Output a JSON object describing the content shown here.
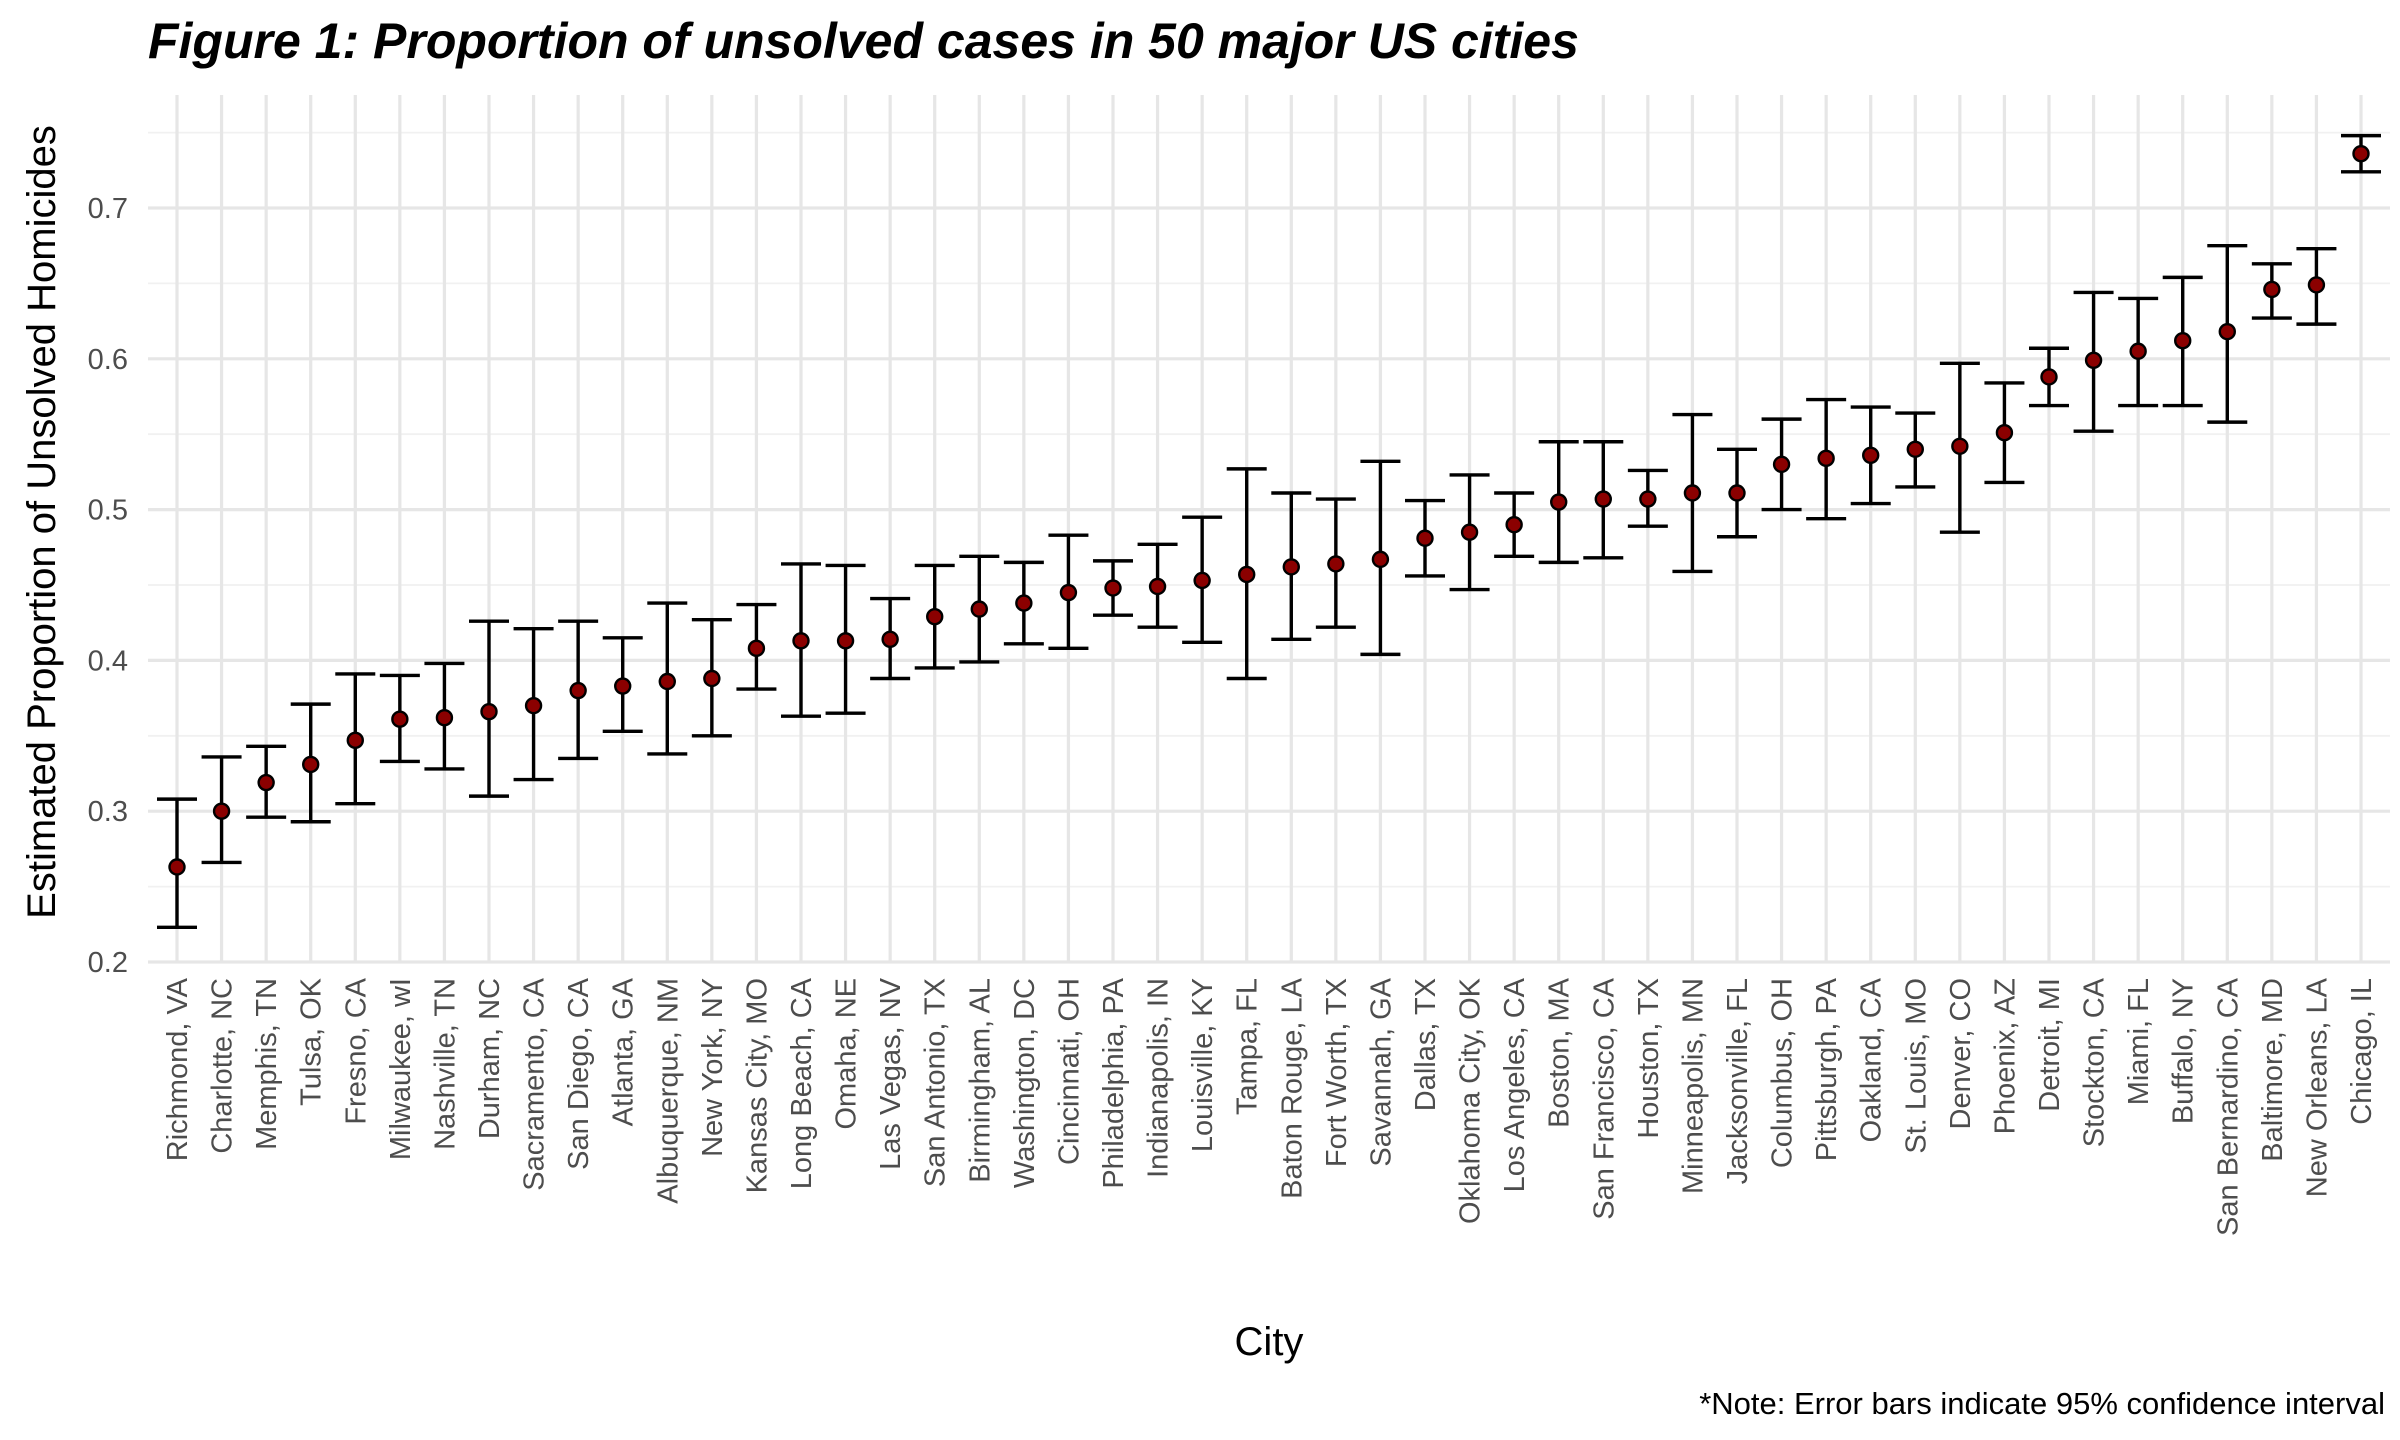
{
  "chart_data": {
    "type": "scatter",
    "title": "Figure 1: Proportion of unsolved cases in 50 major US cities",
    "xlabel": "City",
    "ylabel": "Estimated Proportion of Unsolved Homicides",
    "caption": "*Note: Error bars indicate 95% confidence interval",
    "ylim": [
      0.2,
      0.75
    ],
    "y_ticks": [
      0.2,
      0.3,
      0.4,
      0.5,
      0.6,
      0.7
    ],
    "grid": true,
    "legend": "none",
    "colors": {
      "point_fill": "#8b0000",
      "error_bar": "#000000",
      "grid": "#e6e6e6"
    },
    "categories": [
      "Richmond, VA",
      "Charlotte, NC",
      "Memphis, TN",
      "Tulsa, OK",
      "Fresno, CA",
      "Milwaukee, wI",
      "Nashville, TN",
      "Durham, NC",
      "Sacramento, CA",
      "San Diego, CA",
      "Atlanta, GA",
      "Albuquerque, NM",
      "New York, NY",
      "Kansas City, MO",
      "Long Beach, CA",
      "Omaha, NE",
      "Las Vegas, NV",
      "San Antonio, TX",
      "Birmingham, AL",
      "Washington, DC",
      "Cincinnati, OH",
      "Philadelphia, PA",
      "Indianapolis, IN",
      "Louisville, KY",
      "Tampa, FL",
      "Baton Rouge, LA",
      "Fort Worth, TX",
      "Savannah, GA",
      "Dallas, TX",
      "Oklahoma City, OK",
      "Los Angeles, CA",
      "Boston, MA",
      "San Francisco, CA",
      "Houston, TX",
      "Minneapolis, MN",
      "Jacksonville, FL",
      "Columbus, OH",
      "Pittsburgh, PA",
      "Oakland, CA",
      "St. Louis, MO",
      "Denver, CO",
      "Phoenix, AZ",
      "Detroit, MI",
      "Stockton, CA",
      "Miami, FL",
      "Buffalo, NY",
      "San Bernardino, CA",
      "Baltimore, MD",
      "New Orleans, LA",
      "Chicago, IL"
    ],
    "estimate": [
      0.263,
      0.3,
      0.319,
      0.331,
      0.347,
      0.361,
      0.362,
      0.366,
      0.37,
      0.38,
      0.383,
      0.386,
      0.388,
      0.408,
      0.413,
      0.413,
      0.414,
      0.429,
      0.434,
      0.438,
      0.445,
      0.448,
      0.449,
      0.453,
      0.457,
      0.462,
      0.464,
      0.467,
      0.481,
      0.485,
      0.49,
      0.505,
      0.507,
      0.507,
      0.511,
      0.511,
      0.53,
      0.534,
      0.536,
      0.54,
      0.542,
      0.551,
      0.588,
      0.599,
      0.605,
      0.612,
      0.618,
      0.646,
      0.649,
      0.736
    ],
    "ci_low": [
      0.223,
      0.266,
      0.296,
      0.293,
      0.305,
      0.333,
      0.328,
      0.31,
      0.321,
      0.335,
      0.353,
      0.338,
      0.35,
      0.381,
      0.363,
      0.365,
      0.388,
      0.395,
      0.399,
      0.411,
      0.408,
      0.43,
      0.422,
      0.412,
      0.388,
      0.414,
      0.422,
      0.404,
      0.456,
      0.447,
      0.469,
      0.465,
      0.468,
      0.489,
      0.459,
      0.482,
      0.5,
      0.494,
      0.504,
      0.515,
      0.485,
      0.518,
      0.569,
      0.552,
      0.569,
      0.569,
      0.558,
      0.627,
      0.623,
      0.724
    ],
    "ci_high": [
      0.308,
      0.336,
      0.343,
      0.371,
      0.391,
      0.39,
      0.398,
      0.426,
      0.421,
      0.426,
      0.415,
      0.438,
      0.427,
      0.437,
      0.464,
      0.463,
      0.441,
      0.463,
      0.469,
      0.465,
      0.483,
      0.466,
      0.477,
      0.495,
      0.527,
      0.511,
      0.507,
      0.532,
      0.506,
      0.523,
      0.511,
      0.545,
      0.545,
      0.526,
      0.563,
      0.54,
      0.56,
      0.573,
      0.568,
      0.564,
      0.597,
      0.584,
      0.607,
      0.644,
      0.64,
      0.654,
      0.675,
      0.663,
      0.673,
      0.748
    ]
  }
}
